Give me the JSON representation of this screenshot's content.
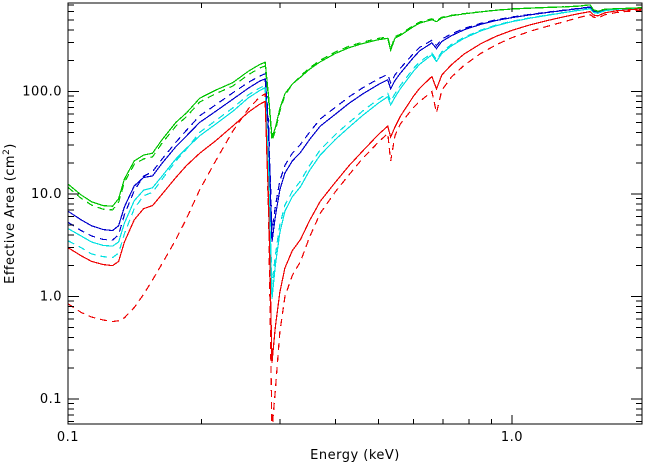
{
  "figure": {
    "background": "#ffffff",
    "frame_color": "#000000",
    "text_color": "#000000"
  },
  "chart_data": {
    "type": "line",
    "title": "",
    "xlabel": "Energy (keV)",
    "ylabel_prefix": "Effective Area (cm",
    "ylabel_superscript": "2",
    "ylabel_suffix": ")",
    "x_axis": {
      "scale": "log",
      "min": 0.1,
      "max": 1.955,
      "major_ticks": [
        {
          "value": 0.1,
          "label": "0.1"
        },
        {
          "value": 1.0,
          "label": "1.0"
        }
      ],
      "minor_ticks": [
        0.2,
        0.3,
        0.4,
        0.5,
        0.6,
        0.7,
        0.8,
        0.9
      ]
    },
    "y_axis": {
      "scale": "log",
      "min": 0.057,
      "max": 729,
      "major_ticks": [
        {
          "value": 0.1,
          "label": "0.1"
        },
        {
          "value": 1.0,
          "label": "1.0"
        },
        {
          "value": 10,
          "label": "10.0"
        },
        {
          "value": 100,
          "label": "100.0"
        }
      ],
      "minor_ticks": [
        0.06,
        0.07,
        0.08,
        0.09,
        0.2,
        0.3,
        0.4,
        0.5,
        0.6,
        0.7,
        0.8,
        0.9,
        2,
        3,
        4,
        5,
        6,
        7,
        8,
        9,
        20,
        30,
        40,
        50,
        60,
        70,
        80,
        90,
        200,
        300,
        400,
        500,
        600,
        700
      ]
    },
    "edges": {
      "carbon_dip_keV": 0.288,
      "oxygen_dip_keV": 0.533,
      "small_notch_keV": 0.676,
      "step_keV": 1.52
    },
    "x": [
      0.1,
      0.107,
      0.113,
      0.12,
      0.126,
      0.13,
      0.134,
      0.141,
      0.148,
      0.155,
      0.163,
      0.175,
      0.185,
      0.198,
      0.215,
      0.235,
      0.255,
      0.27,
      0.278,
      0.283,
      0.288,
      0.293,
      0.3,
      0.308,
      0.32,
      0.334,
      0.35,
      0.37,
      0.4,
      0.43,
      0.46,
      0.5,
      0.525,
      0.533,
      0.545,
      0.56,
      0.6,
      0.62,
      0.66,
      0.676,
      0.695,
      0.73,
      0.78,
      0.85,
      0.92,
      1.0,
      1.1,
      1.2,
      1.3,
      1.4,
      1.5,
      1.525,
      1.56,
      1.62,
      1.72,
      1.85,
      1.955
    ],
    "series": [
      {
        "name": "blue-solid",
        "color": "#0000cc",
        "style": "solid",
        "y": [
          6.8,
          5.6,
          4.9,
          4.5,
          4.4,
          4.9,
          7.5,
          12,
          14.5,
          15,
          20,
          29,
          37,
          50,
          64,
          84,
          108,
          126,
          133,
          40,
          3.4,
          6.0,
          11,
          16,
          21,
          25.5,
          34,
          46,
          60,
          77,
          94,
          117,
          130,
          106,
          128,
          150,
          215,
          250,
          298,
          262,
          308,
          350,
          400,
          452,
          492,
          526,
          560,
          590,
          615,
          640,
          664,
          607,
          592,
          624,
          639,
          648,
          656
        ]
      },
      {
        "name": "blue-dashed",
        "color": "#0000cc",
        "style": "dashed",
        "y": [
          5.3,
          4.4,
          3.9,
          3.6,
          3.55,
          4.0,
          6.3,
          10.8,
          14.9,
          16.5,
          22,
          32,
          42,
          58,
          74,
          97,
          123,
          141,
          149,
          48,
          4.4,
          7.5,
          13.5,
          19,
          25,
          30.5,
          40,
          54,
          70,
          89,
          108,
          133,
          147,
          121,
          145,
          168,
          235,
          270,
          316,
          280,
          325,
          364,
          412,
          462,
          500,
          533,
          566,
          595,
          620,
          644,
          668,
          610,
          595,
          626,
          641,
          650,
          658
        ]
      },
      {
        "name": "cyan-solid",
        "color": "#00e0e0",
        "style": "solid",
        "y": [
          4.6,
          3.9,
          3.4,
          3.15,
          3.1,
          3.4,
          5.2,
          8.6,
          10.9,
          11.5,
          15,
          22,
          28,
          37,
          48,
          64,
          87,
          102,
          109,
          16,
          0.95,
          2.0,
          4.2,
          6.8,
          9.4,
          11.8,
          17,
          24,
          34,
          45,
          58,
          77,
          89,
          74,
          88,
          106,
          158,
          185,
          228,
          196,
          235,
          278,
          330,
          390,
          438,
          480,
          520,
          553,
          585,
          615,
          642,
          590,
          579,
          614,
          634,
          645,
          652
        ]
      },
      {
        "name": "cyan-dashed",
        "color": "#00e0e0",
        "style": "dashed",
        "y": [
          3.5,
          3.0,
          2.6,
          2.45,
          2.4,
          2.65,
          4.1,
          7.2,
          9.6,
          10.4,
          14,
          21,
          27.5,
          40,
          52,
          69,
          93,
          108,
          115,
          18,
          1.3,
          2.5,
          5.0,
          7.8,
          10.6,
          13.4,
          19,
          27,
          38,
          50,
          64,
          84,
          96,
          81,
          95,
          114,
          168,
          195,
          237,
          204,
          244,
          287,
          338,
          397,
          444,
          485,
          524,
          557,
          588,
          618,
          645,
          593,
          582,
          616,
          636,
          646,
          653
        ]
      },
      {
        "name": "green-solid",
        "color": "#00c400",
        "style": "solid",
        "y": [
          12.5,
          9.8,
          8.4,
          7.7,
          7.6,
          9.0,
          14,
          21,
          24,
          25,
          34,
          50,
          62,
          86,
          103,
          122,
          158,
          183,
          193,
          90,
          36,
          44,
          68,
          95,
          118,
          138,
          165,
          195,
          235,
          268,
          293,
          320,
          330,
          252,
          332,
          352,
          430,
          465,
          502,
          480,
          522,
          548,
          572,
          598,
          620,
          638,
          650,
          660,
          668,
          678,
          700,
          625,
          605,
          635,
          643,
          650,
          655
        ]
      },
      {
        "name": "green-dashed",
        "color": "#00c400",
        "style": "dashed",
        "y": [
          11.6,
          9.1,
          7.8,
          7.1,
          7.0,
          8.3,
          13,
          19.5,
          22,
          23,
          31.5,
          46,
          57,
          79,
          95,
          113,
          146,
          169,
          178,
          83,
          33,
          41,
          64,
          92,
          118,
          142,
          170,
          202,
          243,
          277,
          302,
          330,
          340,
          262,
          342,
          362,
          442,
          477,
          512,
          490,
          530,
          554,
          576,
          600,
          622,
          640,
          652,
          662,
          670,
          680,
          702,
          628,
          608,
          637,
          645,
          652,
          657
        ]
      },
      {
        "name": "red-solid",
        "color": "#ee0000",
        "style": "solid",
        "y": [
          3.0,
          2.5,
          2.2,
          2.05,
          2.0,
          2.2,
          3.4,
          5.6,
          7.2,
          7.7,
          10,
          14.5,
          19,
          25,
          33,
          46,
          63,
          75,
          80,
          8.0,
          0.225,
          0.5,
          1.1,
          1.9,
          2.8,
          3.6,
          5.5,
          8.5,
          13,
          19,
          26,
          38,
          46,
          36,
          45,
          57,
          90,
          108,
          140,
          106,
          145,
          182,
          232,
          292,
          345,
          395,
          448,
          492,
          532,
          570,
          602,
          557,
          547,
          586,
          613,
          629,
          640
        ]
      },
      {
        "name": "red-dashed",
        "color": "#ee0000",
        "style": "dashed",
        "y": [
          0.85,
          0.7,
          0.63,
          0.59,
          0.57,
          0.58,
          0.62,
          0.78,
          1.05,
          1.45,
          2.1,
          3.6,
          5.8,
          11,
          21,
          41,
          68,
          88,
          95,
          6.0,
          0.05,
          0.12,
          0.45,
          1.0,
          1.6,
          2.2,
          3.8,
          6.5,
          10.5,
          15.5,
          22,
          32,
          39,
          21,
          37,
          48,
          70,
          80,
          100,
          62,
          103,
          138,
          180,
          235,
          285,
          335,
          388,
          432,
          475,
          520,
          562,
          532,
          522,
          561,
          591,
          609,
          622
        ]
      }
    ]
  }
}
